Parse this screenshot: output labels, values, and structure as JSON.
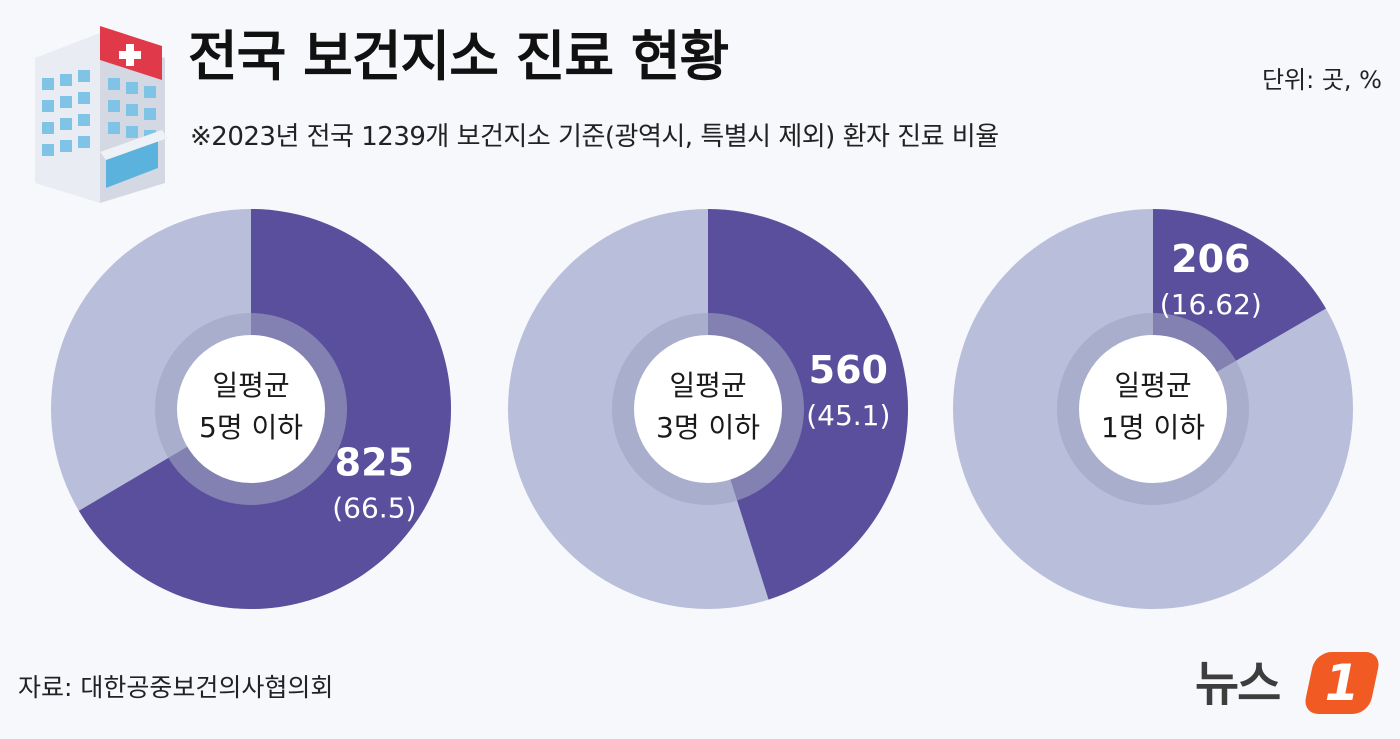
{
  "header": {
    "title": "전국 보건지소 진료 현황",
    "subtitle": "※2023년 전국 1239개 보건지소 기준(광역시, 특별시 제외) 환자 진료 비율",
    "unit": "단위: 곳, %"
  },
  "footer": {
    "source": "자료: 대한공중보건의사협의회",
    "logo_text": "뉴스",
    "logo_badge": "1"
  },
  "colors": {
    "highlight": "#5a4f9c",
    "rest": "#b9bedb",
    "ring": "#9ea3c2",
    "center": "#ffffff"
  },
  "chart_data": [
    {
      "type": "pie",
      "title": "",
      "center_label": [
        "일평균",
        "5명 이하"
      ],
      "value": 825,
      "value_label": "825",
      "percent": 66.5,
      "percent_label": "(66.5)"
    },
    {
      "type": "pie",
      "title": "",
      "center_label": [
        "일평균",
        "3명 이하"
      ],
      "value": 560,
      "value_label": "560",
      "percent": 45.1,
      "percent_label": "(45.1)"
    },
    {
      "type": "pie",
      "title": "",
      "center_label": [
        "일평균",
        "1명 이하"
      ],
      "value": 206,
      "value_label": "206",
      "percent": 16.62,
      "percent_label": "(16.62)"
    }
  ]
}
